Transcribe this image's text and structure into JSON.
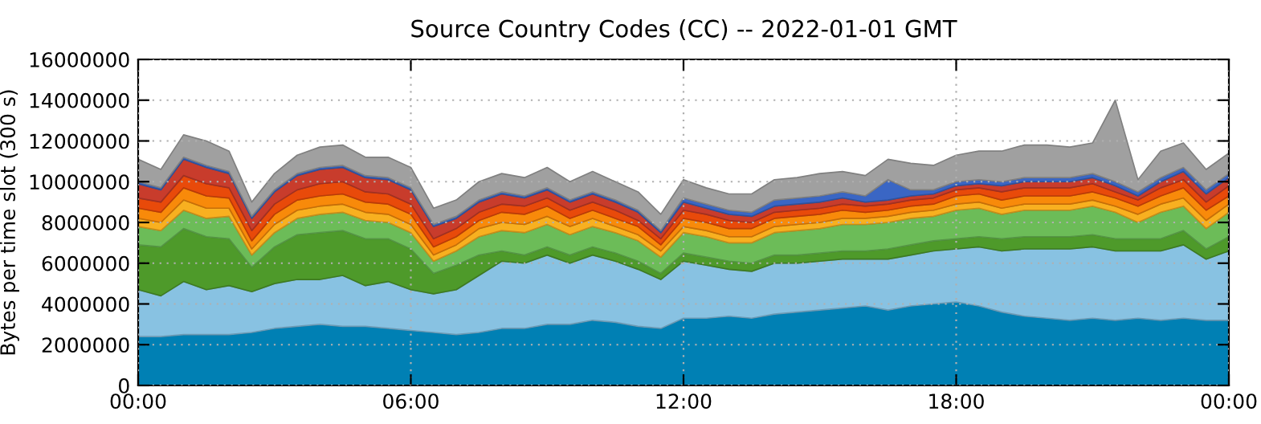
{
  "chart_data": {
    "type": "area",
    "stacked": true,
    "title": "Source Country Codes (CC) -- 2022-01-01 GMT",
    "ylabel": "Bytes per time slot (300 s)",
    "x": [
      0,
      0.5,
      1,
      1.5,
      2,
      2.5,
      3,
      3.5,
      4,
      4.5,
      5,
      5.5,
      6,
      6.5,
      7,
      7.5,
      8,
      8.5,
      9,
      9.5,
      10,
      10.5,
      11,
      11.5,
      12,
      12.5,
      13,
      13.5,
      14,
      14.5,
      15,
      15.5,
      16,
      16.5,
      17,
      17.5,
      18,
      18.5,
      19,
      19.5,
      20,
      20.5,
      21,
      21.5,
      22,
      22.5,
      23,
      23.5,
      24
    ],
    "xlim": [
      0,
      24
    ],
    "xticks": [
      {
        "value": 0,
        "label": "00:00"
      },
      {
        "value": 6,
        "label": "06:00"
      },
      {
        "value": 12,
        "label": "12:00"
      },
      {
        "value": 18,
        "label": "18:00"
      },
      {
        "value": 24,
        "label": "00:00"
      }
    ],
    "ylim": [
      0,
      16000000
    ],
    "yticks": [
      0,
      2000000,
      4000000,
      6000000,
      8000000,
      10000000,
      12000000,
      14000000,
      16000000
    ],
    "grid": true,
    "series": [
      {
        "color": "#0080b4",
        "values": [
          2400000.0,
          2400000.0,
          2500000.0,
          2500000.0,
          2500000.0,
          2600000.0,
          2800000.0,
          2900000.0,
          3000000.0,
          2900000.0,
          2900000.0,
          2800000.0,
          2700000.0,
          2600000.0,
          2500000.0,
          2600000.0,
          2800000.0,
          2800000.0,
          3000000.0,
          3000000.0,
          3200000.0,
          3100000.0,
          2900000.0,
          2800000.0,
          3300000.0,
          3300000.0,
          3400000.0,
          3300000.0,
          3500000.0,
          3600000.0,
          3700000.0,
          3800000.0,
          3900000.0,
          3700000.0,
          3900000.0,
          4000000.0,
          4100000.0,
          3900000.0,
          3600000.0,
          3400000.0,
          3300000.0,
          3200000.0,
          3300000.0,
          3200000.0,
          3300000.0,
          3200000.0,
          3300000.0,
          3200000.0,
          3200000.0
        ]
      },
      {
        "color": "#88c2e2",
        "values": [
          2300000.0,
          2000000.0,
          2600000.0,
          2200000.0,
          2400000.0,
          2000000.0,
          2200000.0,
          2300000.0,
          2200000.0,
          2500000.0,
          2000000.0,
          2300000.0,
          2000000.0,
          1900000.0,
          2200000.0,
          2800000.0,
          3300000.0,
          3200000.0,
          3400000.0,
          3000000.0,
          3200000.0,
          3000000.0,
          2800000.0,
          2400000.0,
          2800000.0,
          2600000.0,
          2300000.0,
          2300000.0,
          2500000.0,
          2400000.0,
          2400000.0,
          2400000.0,
          2300000.0,
          2500000.0,
          2500000.0,
          2600000.0,
          2600000.0,
          2900000.0,
          3000000.0,
          3300000.0,
          3400000.0,
          3500000.0,
          3500000.0,
          3400000.0,
          3300000.0,
          3400000.0,
          3600000.0,
          3000000.0,
          3400000.0
        ]
      },
      {
        "color": "#4e9a2a",
        "values": [
          2200000.0,
          2400000.0,
          2600000.0,
          2600000.0,
          2300000.0,
          1200000.0,
          1800000.0,
          2200000.0,
          2300000.0,
          2200000.0,
          2300000.0,
          2100000.0,
          2000000.0,
          1000000.0,
          1200000.0,
          1000000.0,
          500000.0,
          400000.0,
          400000.0,
          400000.0,
          400000.0,
          400000.0,
          400000.0,
          300000.0,
          400000.0,
          400000.0,
          400000.0,
          400000.0,
          400000.0,
          400000.0,
          400000.0,
          400000.0,
          400000.0,
          500000.0,
          500000.0,
          500000.0,
          500000.0,
          500000.0,
          600000.0,
          600000.0,
          600000.0,
          600000.0,
          600000.0,
          600000.0,
          600000.0,
          600000.0,
          700000.0,
          500000.0,
          700000.0
        ]
      },
      {
        "color": "#6cbc58",
        "values": [
          900000.0,
          800000.0,
          900000.0,
          900000.0,
          1100000.0,
          600000.0,
          700000.0,
          800000.0,
          900000.0,
          900000.0,
          900000.0,
          800000.0,
          800000.0,
          600000.0,
          700000.0,
          900000.0,
          1000000.0,
          1100000.0,
          1100000.0,
          1000000.0,
          1000000.0,
          1000000.0,
          1000000.0,
          800000.0,
          1000000.0,
          1000000.0,
          900000.0,
          1000000.0,
          1100000.0,
          1200000.0,
          1200000.0,
          1300000.0,
          1300000.0,
          1300000.0,
          1300000.0,
          1200000.0,
          1400000.0,
          1400000.0,
          1200000.0,
          1300000.0,
          1300000.0,
          1300000.0,
          1400000.0,
          1300000.0,
          800000.0,
          1300000.0,
          1200000.0,
          1000000.0,
          1200000.0
        ]
      },
      {
        "color": "#f8b020",
        "values": [
          400000.0,
          400000.0,
          500000.0,
          500000.0,
          400000.0,
          300000.0,
          400000.0,
          400000.0,
          400000.0,
          400000.0,
          400000.0,
          400000.0,
          400000.0,
          300000.0,
          300000.0,
          400000.0,
          400000.0,
          400000.0,
          400000.0,
          400000.0,
          400000.0,
          300000.0,
          300000.0,
          300000.0,
          300000.0,
          300000.0,
          300000.0,
          300000.0,
          300000.0,
          300000.0,
          300000.0,
          300000.0,
          300000.0,
          300000.0,
          300000.0,
          300000.0,
          300000.0,
          300000.0,
          300000.0,
          300000.0,
          300000.0,
          300000.0,
          300000.0,
          300000.0,
          400000.0,
          400000.0,
          400000.0,
          400000.0,
          400000.0
        ]
      },
      {
        "color": "#f88a0a",
        "values": [
          500000.0,
          500000.0,
          600000.0,
          600000.0,
          500000.0,
          400000.0,
          500000.0,
          500000.0,
          500000.0,
          500000.0,
          500000.0,
          500000.0,
          500000.0,
          400000.0,
          400000.0,
          400000.0,
          500000.0,
          500000.0,
          500000.0,
          400000.0,
          400000.0,
          400000.0,
          400000.0,
          300000.0,
          400000.0,
          400000.0,
          400000.0,
          400000.0,
          400000.0,
          400000.0,
          400000.0,
          400000.0,
          300000.0,
          300000.0,
          300000.0,
          300000.0,
          400000.0,
          400000.0,
          400000.0,
          400000.0,
          400000.0,
          400000.0,
          400000.0,
          400000.0,
          400000.0,
          400000.0,
          500000.0,
          500000.0,
          400000.0
        ]
      },
      {
        "color": "#e84a0a",
        "values": [
          500000.0,
          500000.0,
          600000.0,
          600000.0,
          500000.0,
          500000.0,
          500000.0,
          500000.0,
          600000.0,
          600000.0,
          500000.0,
          500000.0,
          500000.0,
          400000.0,
          400000.0,
          400000.0,
          400000.0,
          400000.0,
          400000.0,
          400000.0,
          400000.0,
          400000.0,
          300000.0,
          300000.0,
          400000.0,
          400000.0,
          400000.0,
          300000.0,
          300000.0,
          300000.0,
          300000.0,
          300000.0,
          300000.0,
          300000.0,
          300000.0,
          300000.0,
          300000.0,
          300000.0,
          400000.0,
          400000.0,
          400000.0,
          400000.0,
          400000.0,
          300000.0,
          300000.0,
          400000.0,
          400000.0,
          400000.0,
          500000.0
        ]
      },
      {
        "color": "#c83c2c",
        "values": [
          700000.0,
          600000.0,
          800000.0,
          800000.0,
          700000.0,
          600000.0,
          600000.0,
          700000.0,
          700000.0,
          700000.0,
          700000.0,
          700000.0,
          700000.0,
          600000.0,
          500000.0,
          500000.0,
          500000.0,
          400000.0,
          400000.0,
          400000.0,
          400000.0,
          400000.0,
          400000.0,
          300000.0,
          400000.0,
          300000.0,
          300000.0,
          300000.0,
          300000.0,
          300000.0,
          300000.0,
          300000.0,
          200000.0,
          200000.0,
          200000.0,
          200000.0,
          200000.0,
          200000.0,
          300000.0,
          300000.0,
          300000.0,
          300000.0,
          300000.0,
          300000.0,
          200000.0,
          300000.0,
          400000.0,
          400000.0,
          400000.0
        ]
      },
      {
        "color": "#3a66c4",
        "values": [
          100000.0,
          100000.0,
          100000.0,
          100000.0,
          100000.0,
          100000.0,
          100000.0,
          100000.0,
          100000.0,
          100000.0,
          100000.0,
          100000.0,
          100000.0,
          100000.0,
          100000.0,
          100000.0,
          100000.0,
          100000.0,
          100000.0,
          100000.0,
          100000.0,
          100000.0,
          100000.0,
          100000.0,
          200000.0,
          200000.0,
          200000.0,
          200000.0,
          300000.0,
          300000.0,
          300000.0,
          300000.0,
          300000.0,
          1000000.0,
          300000.0,
          200000.0,
          200000.0,
          200000.0,
          200000.0,
          200000.0,
          200000.0,
          200000.0,
          200000.0,
          200000.0,
          200000.0,
          200000.0,
          200000.0,
          200000.0,
          200000.0
        ]
      },
      {
        "color": "#a0a0a0",
        "values": [
          1100000.0,
          900000.0,
          1100000.0,
          1200000.0,
          1000000.0,
          700000.0,
          800000.0,
          900000.0,
          1000000.0,
          1000000.0,
          900000.0,
          1000000.0,
          1000000.0,
          800000.0,
          800000.0,
          900000.0,
          900000.0,
          900000.0,
          1000000.0,
          900000.0,
          1000000.0,
          900000.0,
          900000.0,
          800000.0,
          900000.0,
          800000.0,
          800000.0,
          900000.0,
          1000000.0,
          1000000.0,
          1100000.0,
          1000000.0,
          1000000.0,
          1000000.0,
          1300000.0,
          1200000.0,
          1300000.0,
          1400000.0,
          1500000.0,
          1600000.0,
          1600000.0,
          1500000.0,
          1500000.0,
          4000000.0,
          600000.0,
          1300000.0,
          1200000.0,
          1000000.0,
          1000000.0
        ]
      }
    ]
  }
}
